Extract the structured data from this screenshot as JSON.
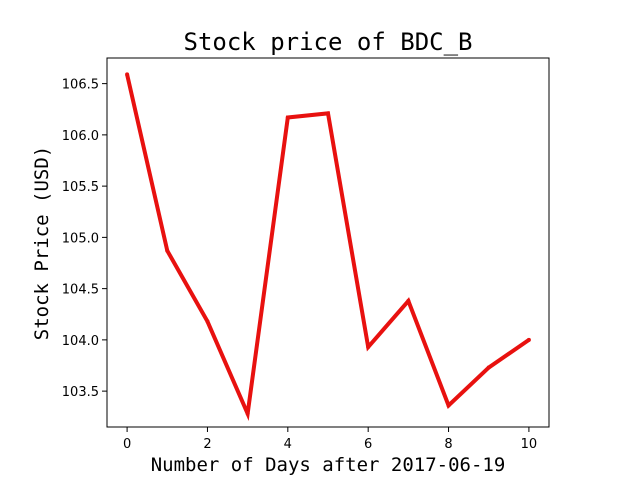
{
  "chart_data": {
    "type": "line",
    "title": "Stock price of BDC_B",
    "xlabel": "Number of Days after 2017-06-19",
    "ylabel": "Stock Price (USD)",
    "x": [
      0,
      1,
      2,
      3,
      4,
      5,
      6,
      7,
      8,
      9,
      10
    ],
    "series": [
      {
        "values": [
          106.59,
          104.87,
          104.18,
          103.28,
          106.17,
          106.21,
          103.93,
          104.38,
          103.36,
          103.73,
          104.0
        ],
        "color": "#e8110f"
      }
    ],
    "xlim": [
      -0.5,
      10.5
    ],
    "ylim": [
      103.15,
      106.75
    ],
    "xticks": [
      0,
      2,
      4,
      6,
      8,
      10
    ],
    "yticks": [
      103.5,
      104.0,
      104.5,
      105.0,
      105.5,
      106.0,
      106.5
    ],
    "xtick_labels": [
      "0",
      "2",
      "4",
      "6",
      "8",
      "10"
    ],
    "ytick_labels": [
      "103.5",
      "104.0",
      "104.5",
      "105.0",
      "105.5",
      "106.0",
      "106.5"
    ],
    "grid": false,
    "legend": "none"
  }
}
